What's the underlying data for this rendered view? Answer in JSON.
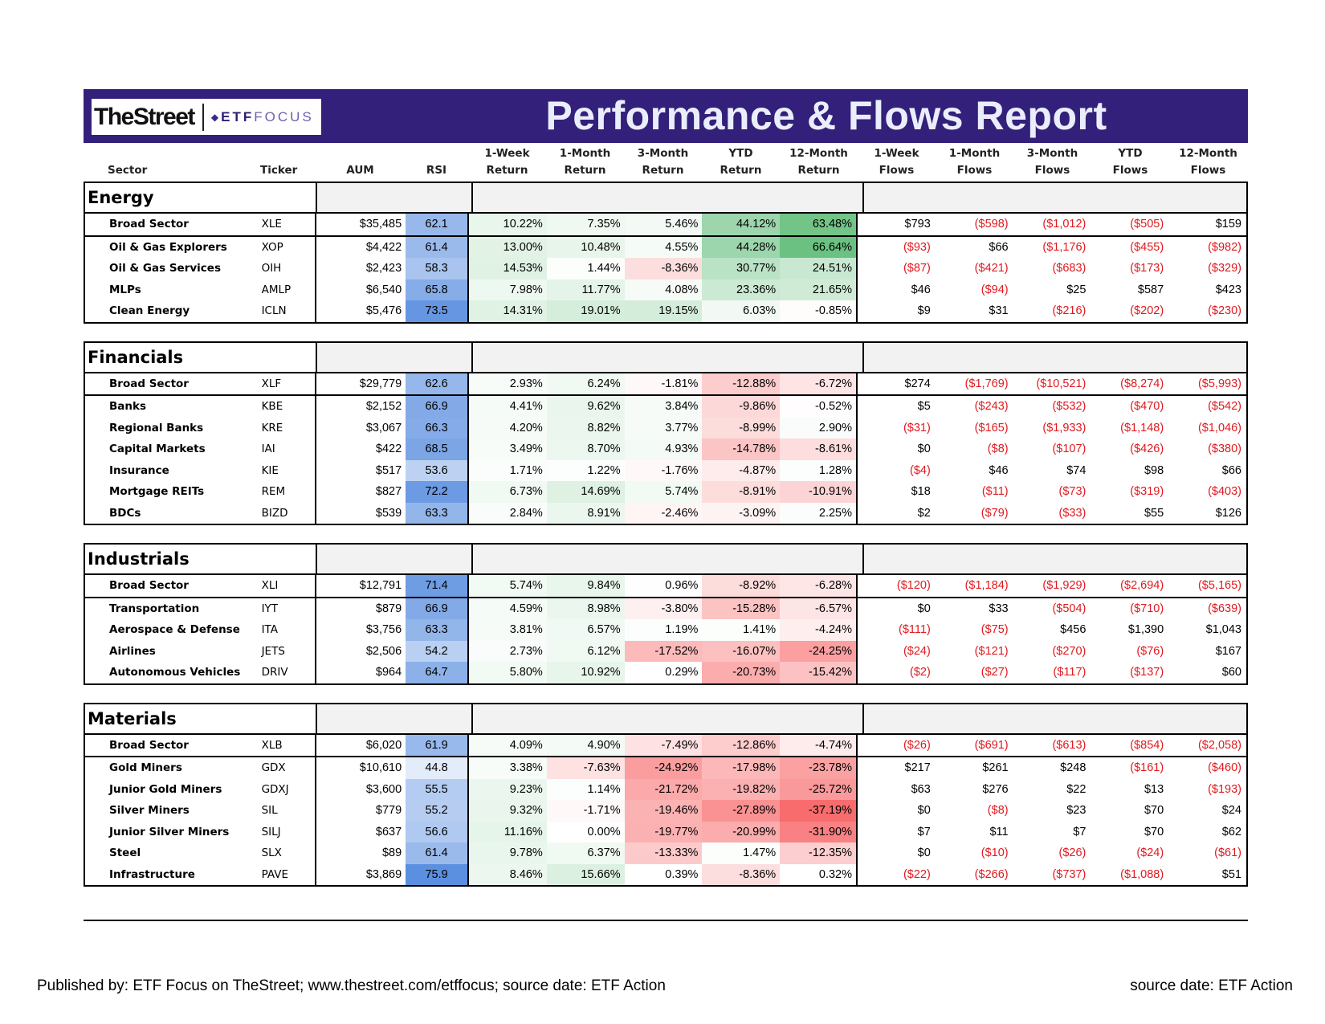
{
  "logo": {
    "primary": "TheStreet",
    "etf": "ETF",
    "focus": "FOCUS"
  },
  "title": "Performance & Flows Report",
  "columns": [
    [
      "",
      "Sector"
    ],
    [
      "",
      "Ticker"
    ],
    [
      "",
      "AUM"
    ],
    [
      "",
      "RSI"
    ],
    [
      "1-Week",
      "Return"
    ],
    [
      "1-Month",
      "Return"
    ],
    [
      "3-Month",
      "Return"
    ],
    [
      "YTD",
      "Return"
    ],
    [
      "12-Month",
      "Return"
    ],
    [
      "1-Week",
      "Flows"
    ],
    [
      "1-Month",
      "Flows"
    ],
    [
      "3-Month",
      "Flows"
    ],
    [
      "YTD",
      "Flows"
    ],
    [
      "12-Month",
      "Flows"
    ]
  ],
  "sections": [
    {
      "name": "Energy",
      "rows": [
        [
          "Broad Sector",
          "XLE",
          "$35,485",
          "62.1",
          "10.22%",
          "7.35%",
          "5.46%",
          "44.12%",
          "63.48%",
          "$793",
          "($598)",
          "($1,012)",
          "($505)",
          "$159"
        ],
        [
          "Oil & Gas Explorers",
          "XOP",
          "$4,422",
          "61.4",
          "13.00%",
          "10.48%",
          "4.55%",
          "44.28%",
          "66.64%",
          "($93)",
          "$66",
          "($1,176)",
          "($455)",
          "($982)"
        ],
        [
          "Oil & Gas Services",
          "OIH",
          "$2,423",
          "58.3",
          "14.53%",
          "1.44%",
          "-8.36%",
          "30.77%",
          "24.51%",
          "($87)",
          "($421)",
          "($683)",
          "($173)",
          "($329)"
        ],
        [
          "MLPs",
          "AMLP",
          "$6,540",
          "65.8",
          "7.98%",
          "11.77%",
          "4.08%",
          "23.36%",
          "21.65%",
          "$46",
          "($94)",
          "$25",
          "$587",
          "$423"
        ],
        [
          "Clean Energy",
          "ICLN",
          "$5,476",
          "73.5",
          "14.31%",
          "19.01%",
          "19.15%",
          "6.03%",
          "-0.85%",
          "$9",
          "$31",
          "($216)",
          "($202)",
          "($230)"
        ]
      ]
    },
    {
      "name": "Financials",
      "rows": [
        [
          "Broad Sector",
          "XLF",
          "$29,779",
          "62.6",
          "2.93%",
          "6.24%",
          "-1.81%",
          "-12.88%",
          "-6.72%",
          "$274",
          "($1,769)",
          "($10,521)",
          "($8,274)",
          "($5,993)"
        ],
        [
          "Banks",
          "KBE",
          "$2,152",
          "66.9",
          "4.41%",
          "9.62%",
          "3.84%",
          "-9.86%",
          "-0.52%",
          "$5",
          "($243)",
          "($532)",
          "($470)",
          "($542)"
        ],
        [
          "Regional Banks",
          "KRE",
          "$3,067",
          "66.3",
          "4.20%",
          "8.82%",
          "3.77%",
          "-8.99%",
          "2.90%",
          "($31)",
          "($165)",
          "($1,933)",
          "($1,148)",
          "($1,046)"
        ],
        [
          "Capital Markets",
          "IAI",
          "$422",
          "68.5",
          "3.49%",
          "8.70%",
          "4.93%",
          "-14.78%",
          "-8.61%",
          "$0",
          "($8)",
          "($107)",
          "($426)",
          "($380)"
        ],
        [
          "Insurance",
          "KIE",
          "$517",
          "53.6",
          "1.71%",
          "1.22%",
          "-1.76%",
          "-4.87%",
          "1.28%",
          "($4)",
          "$46",
          "$74",
          "$98",
          "$66"
        ],
        [
          "Mortgage REITs",
          "REM",
          "$827",
          "72.2",
          "6.73%",
          "14.69%",
          "5.74%",
          "-8.91%",
          "-10.91%",
          "$18",
          "($11)",
          "($73)",
          "($319)",
          "($403)"
        ],
        [
          "BDCs",
          "BIZD",
          "$539",
          "63.3",
          "2.84%",
          "8.91%",
          "-2.46%",
          "-3.09%",
          "2.25%",
          "$2",
          "($79)",
          "($33)",
          "$55",
          "$126"
        ]
      ]
    },
    {
      "name": "Industrials",
      "rows": [
        [
          "Broad Sector",
          "XLI",
          "$12,791",
          "71.4",
          "5.74%",
          "9.84%",
          "0.96%",
          "-8.92%",
          "-6.28%",
          "($120)",
          "($1,184)",
          "($1,929)",
          "($2,694)",
          "($5,165)"
        ],
        [
          "Transportation",
          "IYT",
          "$879",
          "66.9",
          "4.59%",
          "8.98%",
          "-3.80%",
          "-15.28%",
          "-6.57%",
          "$0",
          "$33",
          "($504)",
          "($710)",
          "($639)"
        ],
        [
          "Aerospace & Defense",
          "ITA",
          "$3,756",
          "63.3",
          "3.81%",
          "6.57%",
          "1.19%",
          "1.41%",
          "-4.24%",
          "($111)",
          "($75)",
          "$456",
          "$1,390",
          "$1,043"
        ],
        [
          "Airlines",
          "JETS",
          "$2,506",
          "54.2",
          "2.73%",
          "6.12%",
          "-17.52%",
          "-16.07%",
          "-24.25%",
          "($24)",
          "($121)",
          "($270)",
          "($76)",
          "$167"
        ],
        [
          "Autonomous Vehicles",
          "DRIV",
          "$964",
          "64.7",
          "5.80%",
          "10.92%",
          "0.29%",
          "-20.73%",
          "-15.42%",
          "($2)",
          "($27)",
          "($117)",
          "($137)",
          "$60"
        ]
      ]
    },
    {
      "name": "Materials",
      "rows": [
        [
          "Broad Sector",
          "XLB",
          "$6,020",
          "61.9",
          "4.09%",
          "4.90%",
          "-7.49%",
          "-12.86%",
          "-4.74%",
          "($26)",
          "($691)",
          "($613)",
          "($854)",
          "($2,058)"
        ],
        [
          "Gold Miners",
          "GDX",
          "$10,610",
          "44.8",
          "3.38%",
          "-7.63%",
          "-24.92%",
          "-17.98%",
          "-23.78%",
          "$217",
          "$261",
          "$248",
          "($161)",
          "($460)"
        ],
        [
          "Junior Gold Miners",
          "GDXJ",
          "$3,600",
          "55.5",
          "9.23%",
          "1.14%",
          "-21.72%",
          "-19.82%",
          "-25.72%",
          "$63",
          "$276",
          "$22",
          "$13",
          "($193)"
        ],
        [
          "Silver Miners",
          "SIL",
          "$779",
          "55.2",
          "9.32%",
          "-1.71%",
          "-19.46%",
          "-27.89%",
          "-37.19%",
          "$0",
          "($8)",
          "$23",
          "$70",
          "$24"
        ],
        [
          "Junior Silver Miners",
          "SILJ",
          "$637",
          "56.6",
          "11.16%",
          "0.00%",
          "-19.77%",
          "-20.99%",
          "-31.90%",
          "$7",
          "$11",
          "$7",
          "$70",
          "$62"
        ],
        [
          "Steel",
          "SLX",
          "$89",
          "61.4",
          "9.78%",
          "6.37%",
          "-13.33%",
          "1.47%",
          "-12.35%",
          "$0",
          "($10)",
          "($26)",
          "($24)",
          "($61)"
        ],
        [
          "Infrastructure",
          "PAVE",
          "$3,869",
          "75.9",
          "8.46%",
          "15.66%",
          "0.39%",
          "-8.36%",
          "0.32%",
          "($22)",
          "($266)",
          "($737)",
          "($1,088)",
          "$51"
        ]
      ]
    }
  ],
  "footer": {
    "left": "Published by: ETF Focus on TheStreet; www.thestreet.com/etffocus; source date: ETF Action",
    "right": "source date: ETF Action"
  },
  "colors": {
    "banner": "#33207a",
    "negative": "#e0191f",
    "rsi_scale": "#5b8fe0",
    "positive_heat": "#63be7b",
    "negative_heat": "#f8696b"
  }
}
